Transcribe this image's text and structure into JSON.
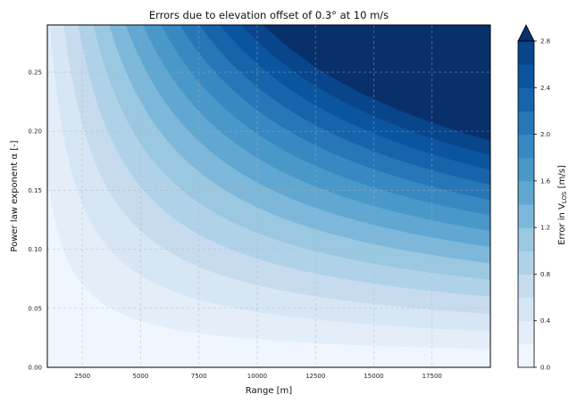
{
  "chart_data": {
    "type": "contour",
    "title": "Errors due to elevation offset of 0.3° at 10 m/s",
    "xlabel": "Range [m]",
    "ylabel": "Power law exponent α [-]",
    "xlim": [
      1000,
      20000
    ],
    "ylim": [
      0,
      0.29
    ],
    "xticks": [
      2500,
      5000,
      7500,
      10000,
      12500,
      15000,
      17500
    ],
    "yticks": [
      "0.00",
      "0.05",
      "0.10",
      "0.15",
      "0.20",
      "0.25"
    ],
    "grid": true,
    "colorbar": {
      "label_prefix": "Error in V",
      "label_sub": "LOS",
      "label_suffix": " [m/s]",
      "levels": [
        0,
        0.2,
        0.4,
        0.6,
        0.8,
        1.0,
        1.2,
        1.4,
        1.6,
        1.8,
        2.0,
        2.2,
        2.4,
        2.6,
        2.8
      ],
      "ticks": [
        "0.0",
        "0.4",
        "0.8",
        "1.2",
        "1.6",
        "2.0",
        "2.4",
        "2.8"
      ],
      "extend": "max",
      "colormap": "Blues",
      "colors": [
        "#eff6fd",
        "#e3eef9",
        "#d6e6f4",
        "#c7dbef",
        "#b0d2e8",
        "#9ac8e0",
        "#7db8da",
        "#60a7d2",
        "#4a98c9",
        "#3888c1",
        "#2676b8",
        "#1764ab",
        "#0b559f",
        "#08458a",
        "#08306b"
      ]
    }
  }
}
